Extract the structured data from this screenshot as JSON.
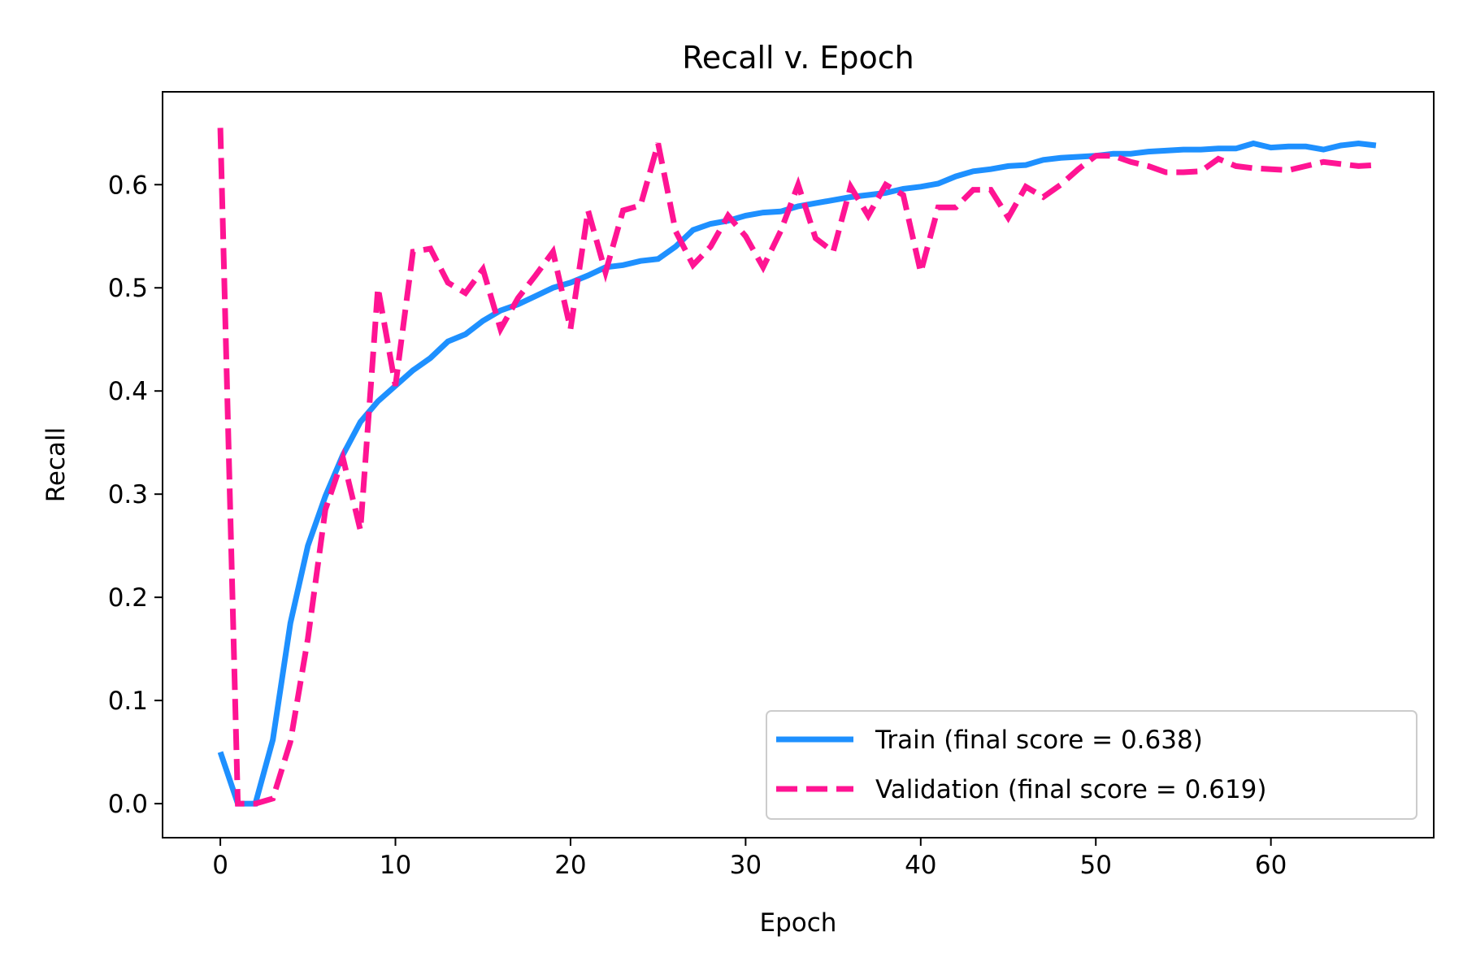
{
  "chart_data": {
    "type": "line",
    "title": "Recall v. Epoch",
    "xlabel": "Epoch",
    "ylabel": "Recall",
    "xlim": [
      -3.3,
      69.3
    ],
    "ylim": [
      -0.033,
      0.69
    ],
    "xticks": [
      0,
      10,
      20,
      30,
      40,
      50,
      60
    ],
    "yticks": [
      0.0,
      0.1,
      0.2,
      0.3,
      0.4,
      0.5,
      0.6
    ],
    "ytick_labels": [
      "0.0",
      "0.1",
      "0.2",
      "0.3",
      "0.4",
      "0.5",
      "0.6"
    ],
    "grid": false,
    "legend_position": "lower-right",
    "series": [
      {
        "name": "Train (final score = 0.638)",
        "color": "#1e90ff",
        "style": "solid",
        "x": [
          0,
          1,
          2,
          3,
          4,
          5,
          6,
          7,
          8,
          9,
          10,
          11,
          12,
          13,
          14,
          15,
          16,
          17,
          18,
          19,
          20,
          21,
          22,
          23,
          24,
          25,
          26,
          27,
          28,
          29,
          30,
          31,
          32,
          33,
          34,
          35,
          36,
          37,
          38,
          39,
          40,
          41,
          42,
          43,
          44,
          45,
          46,
          47,
          48,
          49,
          50,
          51,
          52,
          53,
          54,
          55,
          56,
          57,
          58,
          59,
          60,
          61,
          62,
          63,
          64,
          65,
          66
        ],
        "values": [
          0.05,
          0.0,
          0.0,
          0.062,
          0.175,
          0.25,
          0.298,
          0.338,
          0.37,
          0.39,
          0.405,
          0.42,
          0.432,
          0.448,
          0.455,
          0.468,
          0.478,
          0.484,
          0.492,
          0.5,
          0.505,
          0.512,
          0.52,
          0.522,
          0.526,
          0.528,
          0.54,
          0.556,
          0.562,
          0.565,
          0.57,
          0.573,
          0.574,
          0.579,
          0.582,
          0.585,
          0.588,
          0.59,
          0.592,
          0.596,
          0.598,
          0.601,
          0.608,
          0.613,
          0.615,
          0.618,
          0.619,
          0.624,
          0.626,
          0.627,
          0.628,
          0.63,
          0.63,
          0.632,
          0.633,
          0.634,
          0.634,
          0.635,
          0.635,
          0.64,
          0.636,
          0.637,
          0.637,
          0.634,
          0.638,
          0.64,
          0.638
        ]
      },
      {
        "name": "Validation (final score = 0.619)",
        "color": "#ff1493",
        "style": "dashed",
        "x": [
          0,
          1,
          2,
          3,
          4,
          5,
          6,
          7,
          8,
          9,
          10,
          11,
          12,
          13,
          14,
          15,
          16,
          17,
          18,
          19,
          20,
          21,
          22,
          23,
          24,
          25,
          26,
          27,
          28,
          29,
          30,
          31,
          32,
          33,
          34,
          35,
          36,
          37,
          38,
          39,
          40,
          41,
          42,
          43,
          44,
          45,
          46,
          47,
          48,
          49,
          50,
          51,
          52,
          53,
          54,
          55,
          56,
          57,
          58,
          59,
          60,
          61,
          62,
          63,
          64,
          65,
          66
        ],
        "values": [
          0.655,
          0.0,
          0.0,
          0.005,
          0.06,
          0.16,
          0.285,
          0.335,
          0.265,
          0.5,
          0.405,
          0.535,
          0.538,
          0.505,
          0.495,
          0.518,
          0.46,
          0.49,
          0.512,
          0.535,
          0.46,
          0.575,
          0.515,
          0.575,
          0.58,
          0.64,
          0.555,
          0.522,
          0.54,
          0.57,
          0.55,
          0.52,
          0.555,
          0.6,
          0.548,
          0.535,
          0.598,
          0.57,
          0.6,
          0.59,
          0.515,
          0.578,
          0.578,
          0.595,
          0.595,
          0.568,
          0.598,
          0.588,
          0.6,
          0.615,
          0.628,
          0.628,
          0.622,
          0.618,
          0.612,
          0.612,
          0.613,
          0.625,
          0.618,
          0.616,
          0.615,
          0.614,
          0.618,
          0.622,
          0.62,
          0.618,
          0.619
        ]
      }
    ]
  }
}
